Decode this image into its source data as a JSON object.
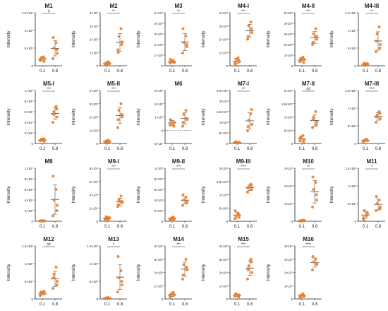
{
  "colors": {
    "point": "#ef7d22",
    "axis": "#222222",
    "bar": "#555555"
  },
  "chart_data": [
    {
      "type": "scatter",
      "title": "M1",
      "ylabel": "Intensity",
      "categories": [
        "0.1",
        "0.8"
      ],
      "sig": "#",
      "yticks": [
        "0",
        "5×10⁵",
        "1×10⁶",
        "1.5×10⁶"
      ],
      "ylim": [
        0,
        1500000
      ],
      "series": [
        {
          "name": "0.1",
          "values": [
            150000,
            200000,
            230000,
            250000,
            180000,
            120000
          ]
        },
        {
          "name": "0.8",
          "values": [
            200000,
            350000,
            500000,
            650000,
            800000,
            450000
          ]
        }
      ]
    },
    {
      "type": "scatter",
      "title": "M2",
      "ylabel": "Intensity",
      "categories": [
        "0.1",
        "0.8"
      ],
      "sig": "**",
      "yticks": [
        "0",
        "1×10⁷",
        "2×10⁷",
        "3×10⁷",
        "4×10⁷"
      ],
      "ylim": [
        0,
        40000000
      ],
      "series": [
        {
          "name": "0.1",
          "values": [
            1000000,
            1500000,
            2500000,
            3000000,
            500000,
            2000000
          ]
        },
        {
          "name": "0.8",
          "values": [
            12000000,
            18000000,
            22000000,
            28000000,
            10000000,
            16000000
          ]
        }
      ]
    },
    {
      "type": "scatter",
      "title": "M3",
      "ylabel": "Intensity",
      "categories": [
        "0.1",
        "0.8"
      ],
      "sig": "**",
      "yticks": [
        "0",
        "1×10⁴",
        "2×10⁴",
        "3×10⁴",
        "4×10⁴",
        "5×10⁴"
      ],
      "ylim": [
        0,
        50000
      ],
      "series": [
        {
          "name": "0.1",
          "values": [
            2500,
            3000,
            4000,
            5000,
            6000,
            3500
          ]
        },
        {
          "name": "0.8",
          "values": [
            12000,
            18000,
            22000,
            28000,
            35000,
            20000
          ]
        }
      ]
    },
    {
      "type": "scatter",
      "title": "M4-I",
      "ylabel": "Intensity",
      "categories": [
        "0.1",
        "0.8"
      ],
      "sig": "***",
      "yticks": [
        "0",
        "1×10⁴",
        "2×10⁴",
        "3×10⁴",
        "4×10⁴"
      ],
      "ylim": [
        0,
        40000
      ],
      "series": [
        {
          "name": "0.1",
          "values": [
            2000,
            3000,
            5000,
            6000,
            1000,
            4000
          ]
        },
        {
          "name": "0.8",
          "values": [
            20000,
            25000,
            30000,
            33000,
            22000,
            28000
          ]
        }
      ]
    },
    {
      "type": "scatter",
      "title": "M4-II",
      "ylabel": "Intensity",
      "categories": [
        "0.1",
        "0.8"
      ],
      "sig": "***",
      "yticks": [
        "0",
        "1×10⁵",
        "2×10⁵",
        "3×10⁵",
        "4×10⁵",
        "5×10⁵"
      ],
      "ylim": [
        0,
        500000
      ],
      "series": [
        {
          "name": "0.1",
          "values": [
            40000,
            60000,
            70000,
            80000,
            50000,
            30000
          ]
        },
        {
          "name": "0.8",
          "values": [
            200000,
            250000,
            300000,
            350000,
            220000,
            280000
          ]
        }
      ]
    },
    {
      "type": "scatter",
      "title": "M4-III",
      "ylabel": "Intensity",
      "categories": [
        "0.1",
        "0.8"
      ],
      "sig": "**",
      "yticks": [
        "0",
        "5×10⁶",
        "1×10⁷",
        "1.5×10⁷"
      ],
      "ylim": [
        0,
        15000000
      ],
      "series": [
        {
          "name": "0.1",
          "values": [
            300000,
            500000,
            700000,
            400000,
            200000,
            600000
          ]
        },
        {
          "name": "0.8",
          "values": [
            4000000,
            6000000,
            9000000,
            11000000,
            7000000,
            5000000
          ]
        }
      ]
    },
    {
      "type": "scatter",
      "title": "M5-I",
      "ylabel": "Intensity",
      "categories": [
        "0.1",
        "0.8"
      ],
      "sig": "***",
      "yticks": [
        "0",
        "2×10⁴",
        "4×10⁴",
        "6×10⁴",
        "8×10⁴",
        "1×10⁵"
      ],
      "ylim": [
        0,
        100000
      ],
      "series": [
        {
          "name": "0.1",
          "values": [
            5000,
            7000,
            8000,
            9000,
            6000,
            4000
          ]
        },
        {
          "name": "0.8",
          "values": [
            40000,
            50000,
            60000,
            70000,
            55000,
            65000
          ]
        }
      ]
    },
    {
      "type": "scatter",
      "title": "M5-II",
      "ylabel": "Intensity",
      "categories": [
        "0.1",
        "0.8"
      ],
      "sig": "***",
      "yticks": [
        "0",
        "1×10⁵",
        "2×10⁵",
        "3×10⁵",
        "4×10⁵"
      ],
      "ylim": [
        0,
        400000
      ],
      "series": [
        {
          "name": "0.1",
          "values": [
            10000,
            15000,
            20000,
            25000,
            5000,
            12000
          ]
        },
        {
          "name": "0.8",
          "values": [
            120000,
            200000,
            250000,
            300000,
            180000,
            220000
          ]
        }
      ]
    },
    {
      "type": "scatter",
      "title": "M6",
      "ylabel": "Intensity",
      "categories": [
        "0.1",
        "0.8"
      ],
      "sig": "",
      "yticks": [
        "-1×10⁷",
        "0",
        "1×10⁷",
        "2×10⁷",
        "3×10⁷"
      ],
      "ylim": [
        -10000000,
        30000000
      ],
      "dashed_zero": true,
      "series": [
        {
          "name": "0.1",
          "values": [
            4000000,
            6000000,
            7000000,
            5000000,
            8000000,
            3000000
          ]
        },
        {
          "name": "0.8",
          "values": [
            3000000,
            8000000,
            12000000,
            15000000,
            6000000,
            9000000
          ]
        }
      ]
    },
    {
      "type": "scatter",
      "title": "M7-I",
      "ylabel": "Intensity",
      "categories": [
        "0.1",
        "0.8"
      ],
      "sig": "**",
      "yticks": [
        "0",
        "5×10⁶",
        "1×10⁷",
        "1.5×10⁷",
        "2×10⁷",
        "2.5×10⁷"
      ],
      "ylim": [
        0,
        25000000
      ],
      "series": [
        {
          "name": "0.1",
          "values": [
            300000,
            500000,
            800000,
            200000,
            600000,
            400000
          ]
        },
        {
          "name": "0.8",
          "values": [
            6000000,
            9000000,
            11000000,
            14000000,
            8000000,
            16000000
          ]
        }
      ]
    },
    {
      "type": "scatter",
      "title": "M7-II",
      "ylabel": "Intensity",
      "categories": [
        "0.1",
        "0.8"
      ],
      "sig": "##",
      "yticks": [
        "0",
        "5×10⁵",
        "1×10⁶",
        "1.5×10⁶",
        "2×10⁶"
      ],
      "ylim": [
        0,
        2000000
      ],
      "series": [
        {
          "name": "0.1",
          "values": [
            100000,
            150000,
            250000,
            300000,
            200000,
            50000
          ]
        },
        {
          "name": "0.8",
          "values": [
            600000,
            800000,
            1000000,
            1200000,
            900000,
            700000
          ]
        }
      ]
    },
    {
      "type": "scatter",
      "title": "M7-III",
      "ylabel": "Intensity",
      "categories": [
        "0.1",
        "0.8"
      ],
      "sig": "****",
      "yticks": [
        "0",
        "5×10⁶",
        "1×10⁷",
        "1.5×10⁷"
      ],
      "ylim": [
        0,
        15000000
      ],
      "series": [
        {
          "name": "0.1",
          "values": [
            500000,
            800000,
            1000000,
            1200000,
            700000,
            900000
          ]
        },
        {
          "name": "0.8",
          "values": [
            6000000,
            7000000,
            8000000,
            9000000,
            7500000,
            8500000
          ]
        }
      ]
    },
    {
      "type": "scatter",
      "title": "M8",
      "ylabel": "Intensity",
      "categories": [
        "0.1",
        "0.8"
      ],
      "sig": "",
      "yticks": [
        "0",
        "2×10⁶",
        "4×10⁶",
        "6×10⁶",
        "8×10⁶",
        "1×10⁷"
      ],
      "ylim": [
        0,
        10000000
      ],
      "series": [
        {
          "name": "0.1",
          "values": [
            50000,
            80000,
            100000,
            120000,
            60000,
            40000
          ]
        },
        {
          "name": "0.8",
          "values": [
            1000000,
            3000000,
            4000000,
            6000000,
            8500000,
            2000000
          ]
        }
      ]
    },
    {
      "type": "scatter",
      "title": "M9-I",
      "ylabel": "Intensity",
      "categories": [
        "0.1",
        "0.8"
      ],
      "sig": "***",
      "yticks": [
        "0",
        "2×10⁴",
        "4×10⁴",
        "6×10⁴",
        "8×10⁴"
      ],
      "ylim": [
        0,
        80000
      ],
      "series": [
        {
          "name": "0.1",
          "values": [
            3000,
            5000,
            7000,
            2000,
            4000,
            6000
          ]
        },
        {
          "name": "0.8",
          "values": [
            22000,
            28000,
            32000,
            38000,
            25000,
            30000
          ]
        }
      ]
    },
    {
      "type": "scatter",
      "title": "M9-II",
      "ylabel": "Intensity",
      "categories": [
        "0.1",
        "0.8"
      ],
      "sig": "***",
      "yticks": [
        "0",
        "2×10⁴",
        "4×10⁴",
        "6×10⁴",
        "8×10⁴",
        "1×10⁵"
      ],
      "ylim": [
        0,
        100000
      ],
      "series": [
        {
          "name": "0.1",
          "values": [
            2000,
            4000,
            6000,
            8000,
            3000,
            5000
          ]
        },
        {
          "name": "0.8",
          "values": [
            30000,
            35000,
            40000,
            45000,
            50000,
            38000
          ]
        }
      ]
    },
    {
      "type": "scatter",
      "title": "M9-III",
      "ylabel": "Intensity",
      "categories": [
        "0.1",
        "0.8"
      ],
      "sig": "****",
      "yticks": [
        "0",
        "5×10⁵",
        "1×10⁶",
        "1.5×10⁶",
        "2×10⁶"
      ],
      "ylim": [
        0,
        2000000
      ],
      "series": [
        {
          "name": "0.1",
          "values": [
            100000,
            150000,
            200000,
            300000,
            400000,
            250000
          ]
        },
        {
          "name": "0.8",
          "values": [
            1100000,
            1200000,
            1300000,
            1400000,
            1250000,
            1350000
          ]
        }
      ]
    },
    {
      "type": "scatter",
      "title": "M10",
      "ylabel": "Intensity",
      "categories": [
        "0.1",
        "0.8"
      ],
      "sig": "**",
      "yticks": [
        "0",
        "1×10⁷",
        "2×10⁷",
        "3×10⁷"
      ],
      "ylim": [
        0,
        30000000
      ],
      "series": [
        {
          "name": "0.1",
          "values": [
            200000,
            300000,
            400000,
            500000,
            100000,
            600000
          ]
        },
        {
          "name": "0.8",
          "values": [
            8000000,
            12000000,
            18000000,
            22000000,
            25000000,
            15000000
          ]
        }
      ]
    },
    {
      "type": "scatter",
      "title": "M11",
      "ylabel": "Intensity",
      "categories": [
        "0.1",
        "0.8"
      ],
      "sig": "*",
      "yticks": [
        "0",
        "5×10⁷",
        "1×10⁸",
        "1.5×10⁸"
      ],
      "ylim": [
        0,
        150000000
      ],
      "series": [
        {
          "name": "0.1",
          "values": [
            10000000,
            20000000,
            30000000,
            15000000,
            5000000,
            25000000
          ]
        },
        {
          "name": "0.8",
          "values": [
            30000000,
            40000000,
            50000000,
            60000000,
            70000000,
            35000000
          ]
        }
      ]
    },
    {
      "type": "scatter",
      "title": "M12",
      "ylabel": "Intensity",
      "categories": [
        "0.1",
        "0.8"
      ],
      "sig": "##",
      "yticks": [
        "0",
        "5×10⁵",
        "1×10⁶",
        "1.5×10⁶"
      ],
      "ylim": [
        0,
        1500000
      ],
      "series": [
        {
          "name": "0.1",
          "values": [
            100000,
            150000,
            200000,
            180000,
            120000,
            220000
          ]
        },
        {
          "name": "0.8",
          "values": [
            300000,
            500000,
            700000,
            900000,
            600000,
            400000
          ]
        }
      ]
    },
    {
      "type": "scatter",
      "title": "M13",
      "ylabel": "Intensity",
      "categories": [
        "0.1",
        "0.8"
      ],
      "sig": "*",
      "yticks": [
        "0",
        "5×10⁶",
        "1×10⁷",
        "1.5×10⁷"
      ],
      "ylim": [
        0,
        15000000
      ],
      "series": [
        {
          "name": "0.1",
          "values": [
            100000,
            200000,
            300000,
            400000,
            250000,
            150000
          ]
        },
        {
          "name": "0.8",
          "values": [
            2000000,
            4000000,
            6000000,
            8000000,
            12000000,
            5000000
          ]
        }
      ]
    },
    {
      "type": "scatter",
      "title": "M14",
      "ylabel": "Intensity",
      "categories": [
        "0.1",
        "0.8"
      ],
      "sig": "***",
      "yticks": [
        "0",
        "1×10⁴",
        "2×10⁴",
        "3×10⁴",
        "4×10⁴"
      ],
      "ylim": [
        0,
        40000
      ],
      "series": [
        {
          "name": "0.1",
          "values": [
            2000,
            3000,
            4000,
            5000,
            1500,
            3500
          ]
        },
        {
          "name": "0.8",
          "values": [
            15000,
            22000,
            26000,
            30000,
            18000,
            24000
          ]
        }
      ]
    },
    {
      "type": "scatter",
      "title": "M15",
      "ylabel": "Intensity",
      "categories": [
        "0.1",
        "0.8"
      ],
      "sig": "***",
      "yticks": [
        "0",
        "1×10⁵",
        "2×10⁵",
        "3×10⁵",
        "4×10⁵"
      ],
      "ylim": [
        0,
        400000
      ],
      "series": [
        {
          "name": "0.1",
          "values": [
            20000,
            30000,
            40000,
            25000,
            35000,
            15000
          ]
        },
        {
          "name": "0.8",
          "values": [
            150000,
            200000,
            250000,
            300000,
            220000,
            280000
          ]
        }
      ]
    },
    {
      "type": "scatter",
      "title": "M16",
      "ylabel": "Intensity",
      "categories": [
        "0.1",
        "0.8"
      ],
      "sig": "****",
      "yticks": [
        "0",
        "1×10⁷",
        "2×10⁷",
        "3×10⁷",
        "4×10⁷"
      ],
      "ylim": [
        0,
        40000000
      ],
      "series": [
        {
          "name": "0.1",
          "values": [
            1000000,
            2000000,
            3000000,
            4000000,
            1500000,
            2500000
          ]
        },
        {
          "name": "0.8",
          "values": [
            22000000,
            26000000,
            28000000,
            30000000,
            32000000,
            27000000
          ]
        }
      ]
    }
  ]
}
